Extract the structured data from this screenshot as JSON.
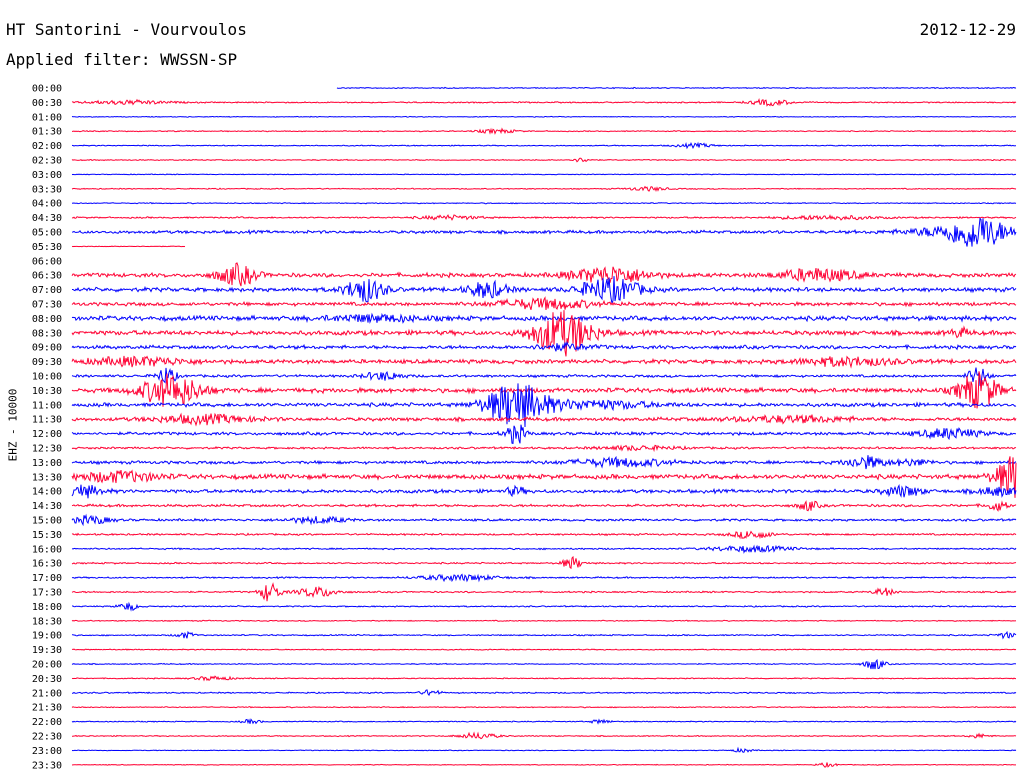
{
  "header": {
    "station": "HT Santorini - Vourvoulos",
    "date": "2012-12-29",
    "filter": "Applied filter: WWSSN-SP"
  },
  "colors": {
    "odd": "#0000ff",
    "even": "#ff0033"
  },
  "chart_data": {
    "type": "line",
    "title": "HT Santorini - Vourvoulos",
    "subtitle": "Applied filter: WWSSN-SP",
    "date": "2012-12-29",
    "ylabel": "EHZ - 10000",
    "xlabel": "",
    "grid": false,
    "legend": "none",
    "lines": [
      {
        "label": "00:00",
        "color": "blue",
        "noise": 0.4,
        "events": [],
        "gaps": [
          [
            0.0,
            0.28
          ]
        ]
      },
      {
        "label": "00:30",
        "color": "red",
        "noise": 0.5,
        "events": [
          [
            0.06,
            2,
            0.04
          ],
          [
            0.74,
            3,
            0.02
          ]
        ]
      },
      {
        "label": "01:00",
        "color": "blue",
        "noise": 0.3,
        "events": []
      },
      {
        "label": "01:30",
        "color": "red",
        "noise": 0.4,
        "events": [
          [
            0.45,
            2,
            0.02
          ]
        ]
      },
      {
        "label": "02:00",
        "color": "blue",
        "noise": 0.4,
        "events": [
          [
            0.66,
            2,
            0.02
          ]
        ]
      },
      {
        "label": "02:30",
        "color": "red",
        "noise": 0.4,
        "events": [
          [
            0.54,
            2,
            0.01
          ]
        ]
      },
      {
        "label": "03:00",
        "color": "blue",
        "noise": 0.3,
        "events": []
      },
      {
        "label": "03:30",
        "color": "red",
        "noise": 0.4,
        "events": [
          [
            0.61,
            2,
            0.02
          ]
        ]
      },
      {
        "label": "04:00",
        "color": "blue",
        "noise": 0.4,
        "events": []
      },
      {
        "label": "04:30",
        "color": "red",
        "noise": 0.6,
        "events": [
          [
            0.4,
            2,
            0.03
          ],
          [
            0.8,
            2,
            0.05
          ]
        ]
      },
      {
        "label": "05:00",
        "color": "blue",
        "noise": 1.2,
        "events": [
          [
            0.96,
            14,
            0.03
          ],
          [
            0.93,
            4,
            0.05
          ]
        ]
      },
      {
        "label": "05:30",
        "color": "red",
        "noise": 0.3,
        "events": [],
        "gaps": [
          [
            0.12,
            1.0
          ]
        ]
      },
      {
        "label": "06:00",
        "color": "blue",
        "noise": 0.4,
        "events": [],
        "gaps": [
          [
            0.0,
            1.0
          ]
        ]
      },
      {
        "label": "06:30",
        "color": "red",
        "noise": 1.6,
        "events": [
          [
            0.175,
            10,
            0.02
          ],
          [
            0.57,
            8,
            0.04
          ],
          [
            0.79,
            6,
            0.04
          ]
        ]
      },
      {
        "label": "07:00",
        "color": "blue",
        "noise": 1.6,
        "events": [
          [
            0.31,
            12,
            0.02
          ],
          [
            0.44,
            8,
            0.02
          ],
          [
            0.57,
            12,
            0.03
          ]
        ]
      },
      {
        "label": "07:30",
        "color": "red",
        "noise": 1.4,
        "events": [
          [
            0.5,
            5,
            0.05
          ]
        ]
      },
      {
        "label": "08:00",
        "color": "blue",
        "noise": 1.8,
        "events": [
          [
            0.32,
            3,
            0.05
          ]
        ]
      },
      {
        "label": "08:30",
        "color": "red",
        "noise": 1.8,
        "events": [
          [
            0.52,
            22,
            0.03
          ],
          [
            0.94,
            4,
            0.01
          ]
        ]
      },
      {
        "label": "09:00",
        "color": "blue",
        "noise": 1.4,
        "events": [
          [
            0.52,
            3,
            0.03
          ]
        ]
      },
      {
        "label": "09:30",
        "color": "red",
        "noise": 1.6,
        "events": [
          [
            0.07,
            4,
            0.05
          ],
          [
            0.82,
            4,
            0.05
          ]
        ]
      },
      {
        "label": "10:00",
        "color": "blue",
        "noise": 1.0,
        "events": [
          [
            0.1,
            8,
            0.01
          ],
          [
            0.33,
            4,
            0.02
          ],
          [
            0.96,
            10,
            0.01
          ]
        ]
      },
      {
        "label": "10:30",
        "color": "red",
        "noise": 1.8,
        "events": [
          [
            0.105,
            16,
            0.03
          ],
          [
            0.96,
            18,
            0.02
          ]
        ]
      },
      {
        "label": "11:00",
        "color": "blue",
        "noise": 1.5,
        "events": [
          [
            0.47,
            22,
            0.03
          ],
          [
            0.55,
            4,
            0.06
          ]
        ]
      },
      {
        "label": "11:30",
        "color": "red",
        "noise": 1.4,
        "events": [
          [
            0.14,
            4,
            0.05
          ],
          [
            0.76,
            3,
            0.06
          ]
        ]
      },
      {
        "label": "12:00",
        "color": "blue",
        "noise": 1.2,
        "events": [
          [
            0.47,
            10,
            0.01
          ],
          [
            0.93,
            5,
            0.03
          ]
        ]
      },
      {
        "label": "12:30",
        "color": "red",
        "noise": 0.8,
        "events": [
          [
            0.6,
            2,
            0.04
          ]
        ]
      },
      {
        "label": "13:00",
        "color": "blue",
        "noise": 1.2,
        "events": [
          [
            0.58,
            4,
            0.05
          ],
          [
            0.84,
            6,
            0.02
          ],
          [
            0.89,
            3,
            0.02
          ]
        ]
      },
      {
        "label": "13:30",
        "color": "red",
        "noise": 1.8,
        "events": [
          [
            0.05,
            5,
            0.04
          ],
          [
            1.0,
            22,
            0.02
          ]
        ]
      },
      {
        "label": "14:00",
        "color": "blue",
        "noise": 1.4,
        "events": [
          [
            0.01,
            6,
            0.02
          ],
          [
            0.47,
            4,
            0.01
          ],
          [
            0.88,
            5,
            0.02
          ],
          [
            0.98,
            4,
            0.02
          ]
        ]
      },
      {
        "label": "14:30",
        "color": "red",
        "noise": 1.0,
        "events": [
          [
            0.78,
            5,
            0.01
          ],
          [
            0.98,
            5,
            0.01
          ]
        ]
      },
      {
        "label": "15:00",
        "color": "blue",
        "noise": 0.9,
        "events": [
          [
            0.02,
            4,
            0.02
          ],
          [
            0.26,
            3,
            0.03
          ]
        ]
      },
      {
        "label": "15:30",
        "color": "red",
        "noise": 0.7,
        "events": [
          [
            0.72,
            4,
            0.02
          ]
        ]
      },
      {
        "label": "16:00",
        "color": "blue",
        "noise": 0.6,
        "events": [
          [
            0.72,
            3,
            0.04
          ]
        ]
      },
      {
        "label": "16:30",
        "color": "red",
        "noise": 0.6,
        "events": [
          [
            0.53,
            6,
            0.01
          ]
        ]
      },
      {
        "label": "17:00",
        "color": "blue",
        "noise": 0.6,
        "events": [
          [
            0.41,
            3,
            0.04
          ]
        ]
      },
      {
        "label": "17:30",
        "color": "red",
        "noise": 0.6,
        "events": [
          [
            0.21,
            10,
            0.01
          ],
          [
            0.26,
            5,
            0.02
          ],
          [
            0.86,
            4,
            0.01
          ]
        ]
      },
      {
        "label": "18:00",
        "color": "blue",
        "noise": 0.5,
        "events": [
          [
            0.06,
            4,
            0.01
          ]
        ]
      },
      {
        "label": "18:30",
        "color": "red",
        "noise": 0.4,
        "events": []
      },
      {
        "label": "19:00",
        "color": "blue",
        "noise": 0.5,
        "events": [
          [
            0.12,
            3,
            0.01
          ],
          [
            0.99,
            3,
            0.01
          ]
        ]
      },
      {
        "label": "19:30",
        "color": "red",
        "noise": 0.4,
        "events": []
      },
      {
        "label": "20:00",
        "color": "blue",
        "noise": 0.4,
        "events": [
          [
            0.85,
            6,
            0.01
          ]
        ]
      },
      {
        "label": "20:30",
        "color": "red",
        "noise": 0.4,
        "events": [
          [
            0.15,
            2,
            0.02
          ]
        ]
      },
      {
        "label": "21:00",
        "color": "blue",
        "noise": 0.5,
        "events": [
          [
            0.38,
            3,
            0.01
          ]
        ]
      },
      {
        "label": "21:30",
        "color": "red",
        "noise": 0.4,
        "events": []
      },
      {
        "label": "22:00",
        "color": "blue",
        "noise": 0.4,
        "events": [
          [
            0.19,
            2,
            0.01
          ],
          [
            0.56,
            2,
            0.01
          ]
        ]
      },
      {
        "label": "22:30",
        "color": "red",
        "noise": 0.4,
        "events": [
          [
            0.43,
            3,
            0.02
          ],
          [
            0.96,
            2,
            0.01
          ]
        ]
      },
      {
        "label": "23:00",
        "color": "blue",
        "noise": 0.3,
        "events": [
          [
            0.71,
            2,
            0.01
          ]
        ]
      },
      {
        "label": "23:30",
        "color": "red",
        "noise": 0.3,
        "events": [
          [
            0.8,
            2,
            0.01
          ]
        ]
      }
    ]
  }
}
